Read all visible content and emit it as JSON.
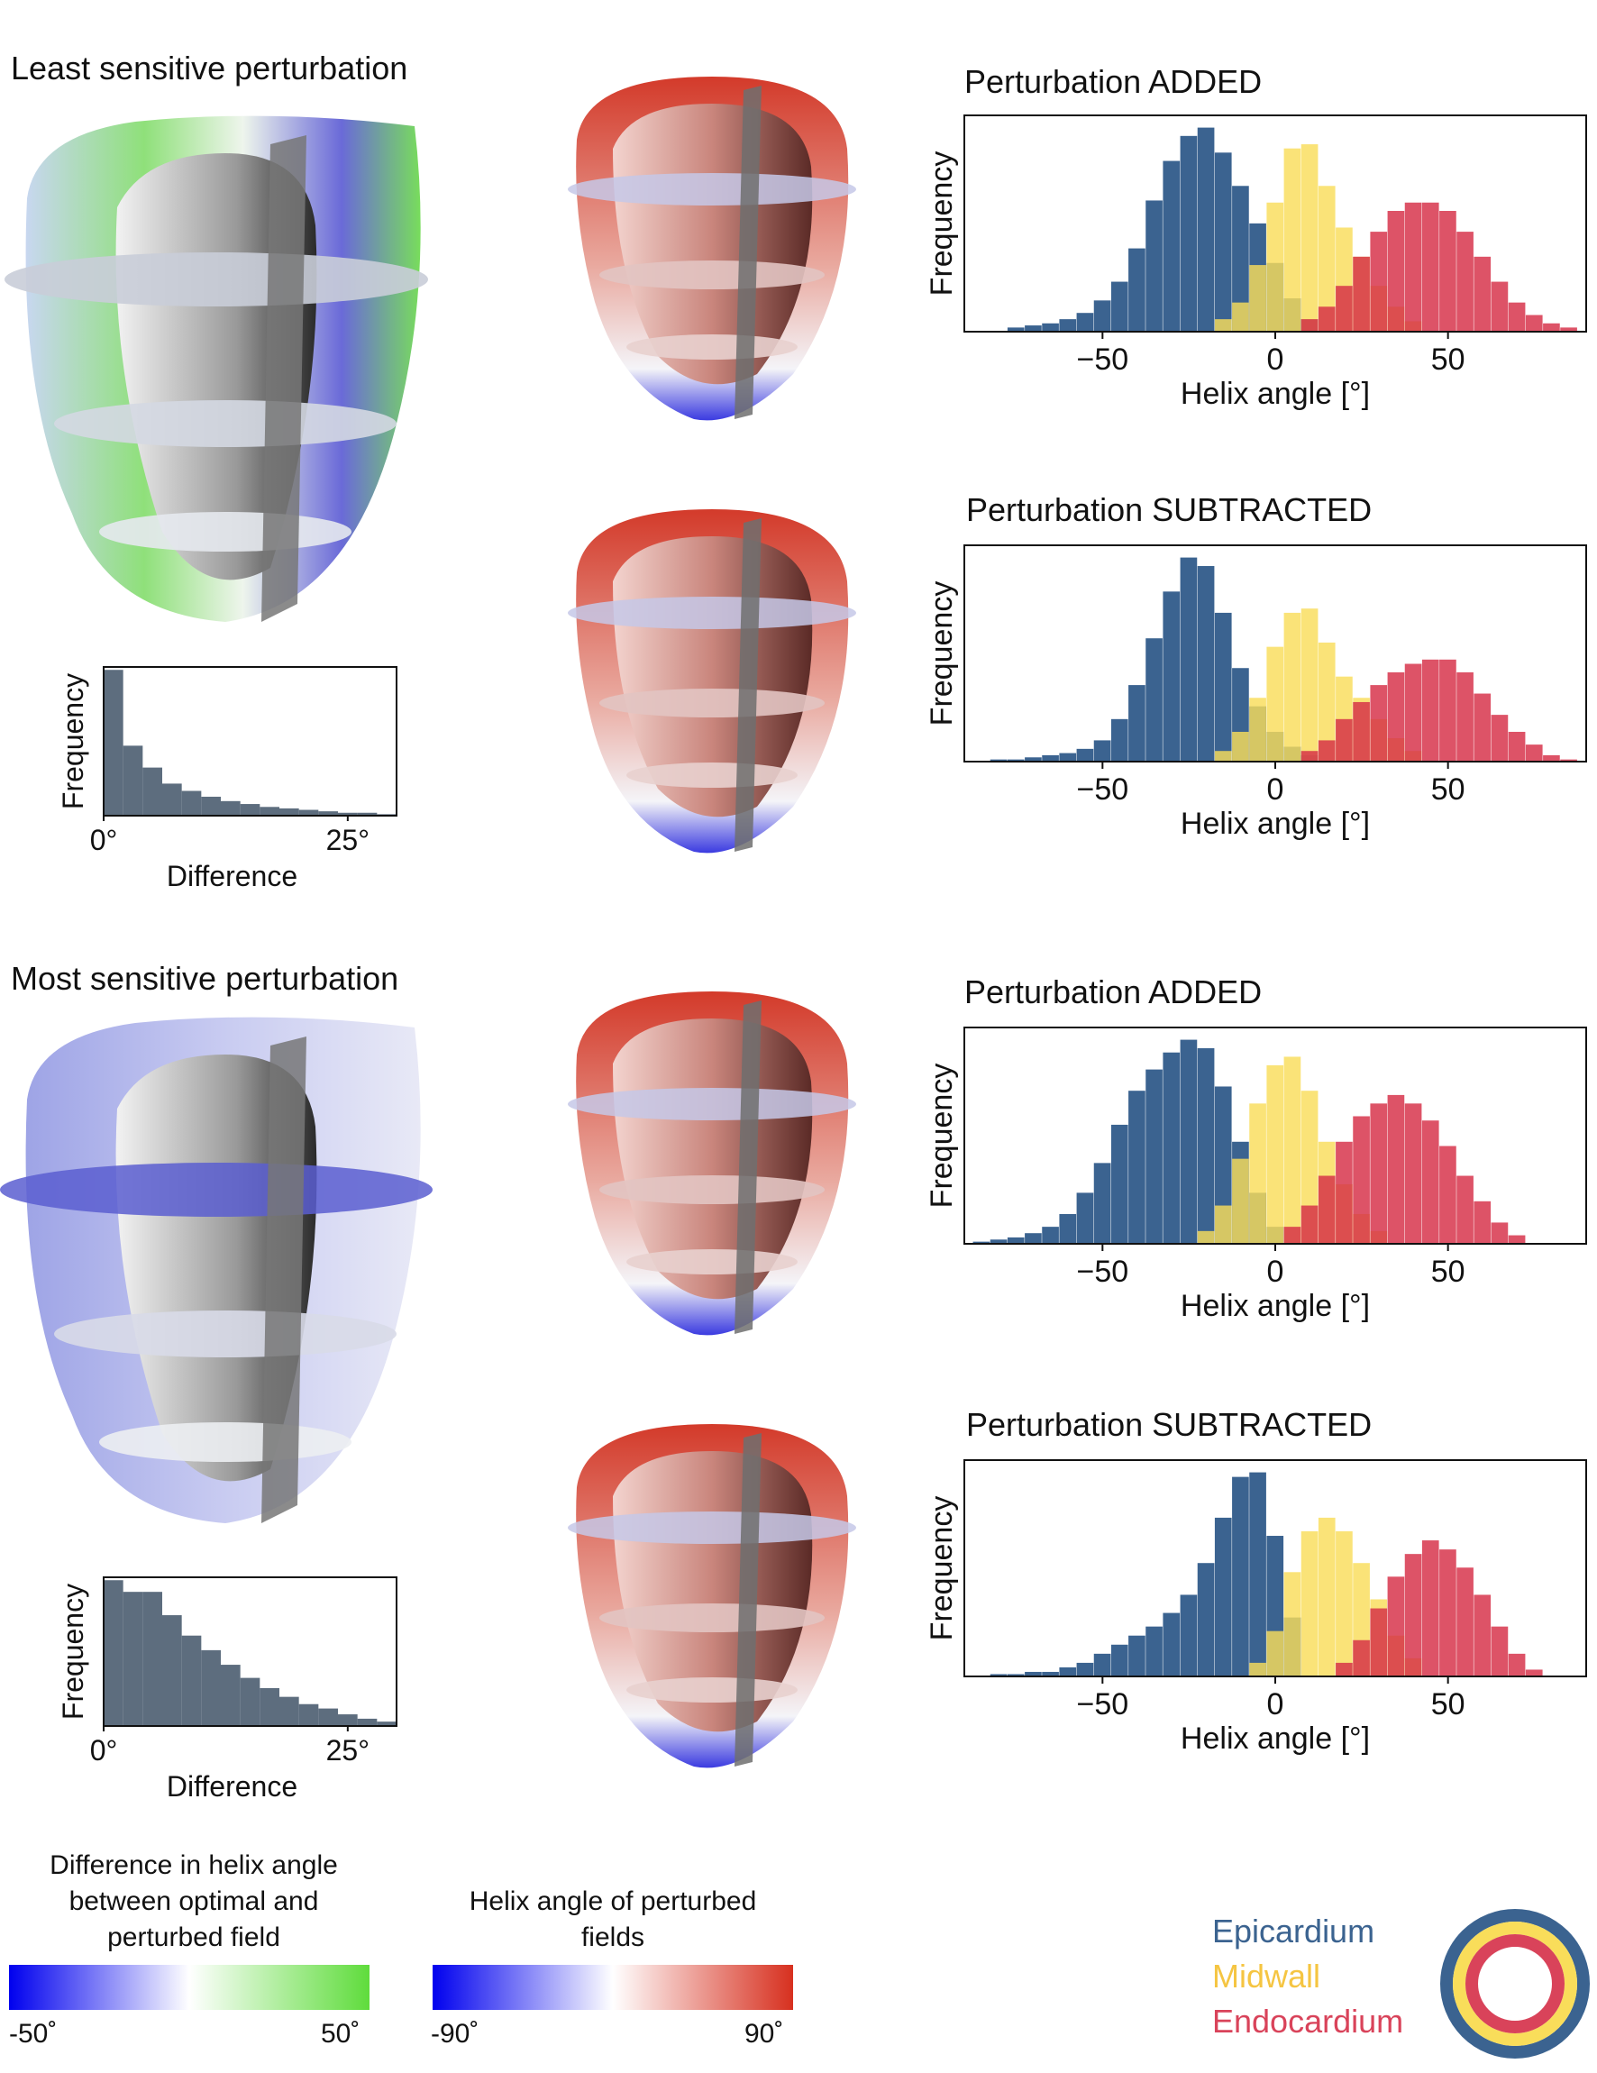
{
  "sections": [
    {
      "title": "Least sensitive perturbation",
      "difference_hist_label": {
        "xlabel": "Difference",
        "ylabel": "Frequency",
        "xticks": [
          "0°",
          "25°"
        ]
      },
      "added": {
        "title": "Perturbation ADDED"
      },
      "subtracted": {
        "title": "Perturbation SUBTRACTED"
      }
    },
    {
      "title": "Most sensitive perturbation",
      "difference_hist_label": {
        "xlabel": "Difference",
        "ylabel": "Frequency",
        "xticks": [
          "0°",
          "25°"
        ]
      },
      "added": {
        "title": "Perturbation ADDED"
      },
      "subtracted": {
        "title": "Perturbation SUBTRACTED"
      }
    }
  ],
  "colorbars": [
    {
      "caption": "Difference in helix angle between optimal and perturbed field",
      "min_label": "-50˚",
      "max_label": "50˚",
      "colors": [
        "#0000ee",
        "#ffffff",
        "#5fdc3c"
      ]
    },
    {
      "caption": "Helix angle of perturbed fields",
      "min_label": "-90˚",
      "max_label": "90˚",
      "colors": [
        "#0000ee",
        "#ffffff",
        "#d7301f"
      ]
    }
  ],
  "legend": {
    "items": [
      {
        "label": "Epicardium",
        "color": "#3b6390"
      },
      {
        "label": "Midwall",
        "color": "#f5c542"
      },
      {
        "label": "Endocardium",
        "color": "#d9435a"
      }
    ]
  },
  "chart_data": [
    {
      "id": "least-diff",
      "type": "bar",
      "xlabel": "Difference",
      "ylabel": "Frequency",
      "xlim": [
        0,
        30
      ],
      "ylim": [
        0,
        1
      ],
      "bin_edges": [
        0,
        2,
        4,
        6,
        8,
        10,
        12,
        14,
        16,
        18,
        20,
        22,
        24,
        26,
        28,
        30
      ],
      "values": [
        1.0,
        0.48,
        0.33,
        0.22,
        0.17,
        0.13,
        0.1,
        0.08,
        0.06,
        0.05,
        0.04,
        0.03,
        0.02,
        0.02,
        0.01
      ],
      "color": "#5d6d7e"
    },
    {
      "id": "least-added",
      "type": "bar",
      "title": "Perturbation ADDED",
      "xlabel": "Helix angle [°]",
      "ylabel": "Frequency",
      "xlim": [
        -90,
        90
      ],
      "xticks": [
        -50,
        0,
        50
      ],
      "bin_width": 5,
      "series": [
        {
          "name": "Epicardium",
          "color": "#3b6390",
          "x": [
            -75,
            -70,
            -65,
            -60,
            -55,
            -50,
            -45,
            -40,
            -35,
            -30,
            -25,
            -20,
            -15,
            -10,
            -5,
            0,
            5,
            10
          ],
          "values": [
            2,
            3,
            4,
            6,
            9,
            15,
            24,
            40,
            63,
            82,
            94,
            98,
            86,
            70,
            52,
            33,
            16,
            6
          ]
        },
        {
          "name": "Midwall",
          "color": "#f9dd5a",
          "x": [
            -15,
            -10,
            -5,
            0,
            5,
            10,
            15,
            20,
            25,
            30,
            35,
            40
          ],
          "values": [
            6,
            14,
            32,
            62,
            88,
            90,
            70,
            50,
            36,
            22,
            12,
            5
          ]
        },
        {
          "name": "Endocardium",
          "color": "#d62d45",
          "x": [
            10,
            15,
            20,
            25,
            30,
            35,
            40,
            45,
            50,
            55,
            60,
            65,
            70,
            75,
            80,
            85
          ],
          "values": [
            6,
            12,
            22,
            36,
            48,
            58,
            62,
            62,
            58,
            48,
            36,
            24,
            14,
            8,
            4,
            2
          ]
        }
      ]
    },
    {
      "id": "least-subtracted",
      "type": "bar",
      "title": "Perturbation SUBTRACTED",
      "xlabel": "Helix angle [°]",
      "ylabel": "Frequency",
      "xlim": [
        -90,
        90
      ],
      "xticks": [
        -50,
        0,
        50
      ],
      "bin_width": 5,
      "series": [
        {
          "name": "Epicardium",
          "color": "#3b6390",
          "x": [
            -80,
            -75,
            -70,
            -65,
            -60,
            -55,
            -50,
            -45,
            -40,
            -35,
            -30,
            -25,
            -20,
            -15,
            -10,
            -5,
            0,
            5,
            10
          ],
          "values": [
            1,
            1,
            2,
            3,
            4,
            6,
            10,
            20,
            36,
            58,
            80,
            96,
            92,
            70,
            44,
            26,
            14,
            7,
            3
          ]
        },
        {
          "name": "Midwall",
          "color": "#f9dd5a",
          "x": [
            -15,
            -10,
            -5,
            0,
            5,
            10,
            15,
            20,
            25,
            30,
            35,
            40
          ],
          "values": [
            5,
            14,
            30,
            54,
            70,
            72,
            56,
            40,
            30,
            20,
            11,
            5
          ]
        },
        {
          "name": "Endocardium",
          "color": "#d62d45",
          "x": [
            10,
            15,
            20,
            25,
            30,
            35,
            40,
            45,
            50,
            55,
            60,
            65,
            70,
            75,
            80,
            85
          ],
          "values": [
            5,
            10,
            20,
            28,
            36,
            42,
            46,
            48,
            48,
            42,
            32,
            22,
            14,
            8,
            3,
            1
          ]
        }
      ]
    },
    {
      "id": "most-diff",
      "type": "bar",
      "xlabel": "Difference",
      "ylabel": "Frequency",
      "xlim": [
        0,
        30
      ],
      "ylim": [
        0,
        1
      ],
      "bin_edges": [
        0,
        2,
        4,
        6,
        8,
        10,
        12,
        14,
        16,
        18,
        20,
        22,
        24,
        26,
        28,
        30
      ],
      "values": [
        1.0,
        0.92,
        0.92,
        0.76,
        0.62,
        0.52,
        0.42,
        0.33,
        0.26,
        0.2,
        0.15,
        0.12,
        0.08,
        0.05,
        0.03
      ],
      "color": "#5d6d7e"
    },
    {
      "id": "most-added",
      "type": "bar",
      "title": "Perturbation ADDED",
      "xlabel": "Helix angle [°]",
      "ylabel": "Frequency",
      "xlim": [
        -90,
        90
      ],
      "xticks": [
        -50,
        0,
        50
      ],
      "bin_width": 5,
      "series": [
        {
          "name": "Epicardium",
          "color": "#3b6390",
          "x": [
            -85,
            -80,
            -75,
            -70,
            -65,
            -60,
            -55,
            -50,
            -45,
            -40,
            -35,
            -30,
            -25,
            -20,
            -15,
            -10,
            -5,
            0
          ],
          "values": [
            1,
            2,
            3,
            5,
            8,
            14,
            24,
            38,
            56,
            72,
            82,
            90,
            96,
            92,
            74,
            48,
            24,
            8
          ]
        },
        {
          "name": "Midwall",
          "color": "#f9dd5a",
          "x": [
            -20,
            -15,
            -10,
            -5,
            0,
            5,
            10,
            15,
            20,
            25,
            30
          ],
          "values": [
            6,
            18,
            40,
            66,
            84,
            88,
            72,
            48,
            28,
            14,
            6
          ]
        },
        {
          "name": "Endocardium",
          "color": "#d62d45",
          "x": [
            5,
            10,
            15,
            20,
            25,
            30,
            35,
            40,
            45,
            50,
            55,
            60,
            65,
            70
          ],
          "values": [
            8,
            18,
            32,
            48,
            60,
            66,
            70,
            66,
            58,
            46,
            32,
            20,
            10,
            4
          ]
        }
      ]
    },
    {
      "id": "most-subtracted",
      "type": "bar",
      "title": "Perturbation SUBTRACTED",
      "xlabel": "Helix angle [°]",
      "ylabel": "Frequency",
      "xlim": [
        -90,
        90
      ],
      "xticks": [
        -50,
        0,
        50
      ],
      "bin_width": 5,
      "series": [
        {
          "name": "Epicardium",
          "color": "#3b6390",
          "x": [
            -80,
            -75,
            -70,
            -65,
            -60,
            -55,
            -50,
            -45,
            -40,
            -35,
            -30,
            -25,
            -20,
            -15,
            -10,
            -5,
            0,
            5
          ],
          "values": [
            1,
            1,
            2,
            2,
            4,
            6,
            10,
            14,
            18,
            22,
            28,
            36,
            50,
            70,
            88,
            90,
            62,
            26
          ]
        },
        {
          "name": "Midwall",
          "color": "#f9dd5a",
          "x": [
            -5,
            0,
            5,
            10,
            15,
            20,
            25,
            30,
            35,
            40
          ],
          "values": [
            6,
            20,
            46,
            64,
            70,
            64,
            50,
            34,
            18,
            8
          ]
        },
        {
          "name": "Endocardium",
          "color": "#d62d45",
          "x": [
            20,
            25,
            30,
            35,
            40,
            45,
            50,
            55,
            60,
            65,
            70,
            75
          ],
          "values": [
            6,
            16,
            30,
            44,
            54,
            60,
            56,
            48,
            36,
            22,
            10,
            3
          ]
        }
      ]
    }
  ]
}
